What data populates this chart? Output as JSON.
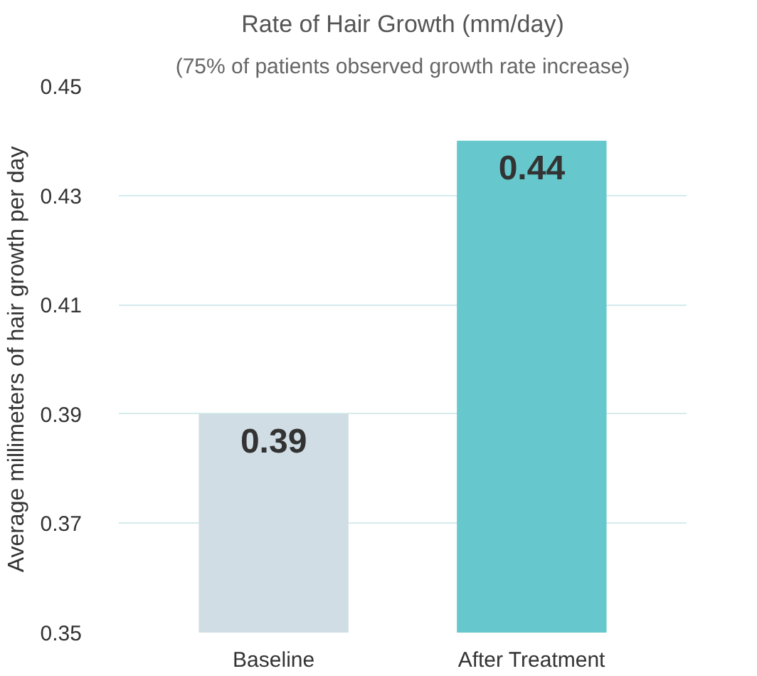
{
  "chart_data": {
    "type": "bar",
    "title": "Rate of Hair Growth (mm/day)",
    "subtitle": "(75% of patients observed growth rate increase)",
    "ylabel": "Average millimeters of hair growth per day",
    "categories": [
      "Baseline",
      "After Treatment"
    ],
    "values": [
      0.39,
      0.44
    ],
    "colors": [
      "#d0dde4",
      "#66c8cc"
    ],
    "ylim": [
      0.35,
      0.45
    ],
    "yticks": [
      0.35,
      0.37,
      0.39,
      0.41,
      0.43,
      0.45
    ],
    "grid": "y",
    "data_labels": true
  }
}
